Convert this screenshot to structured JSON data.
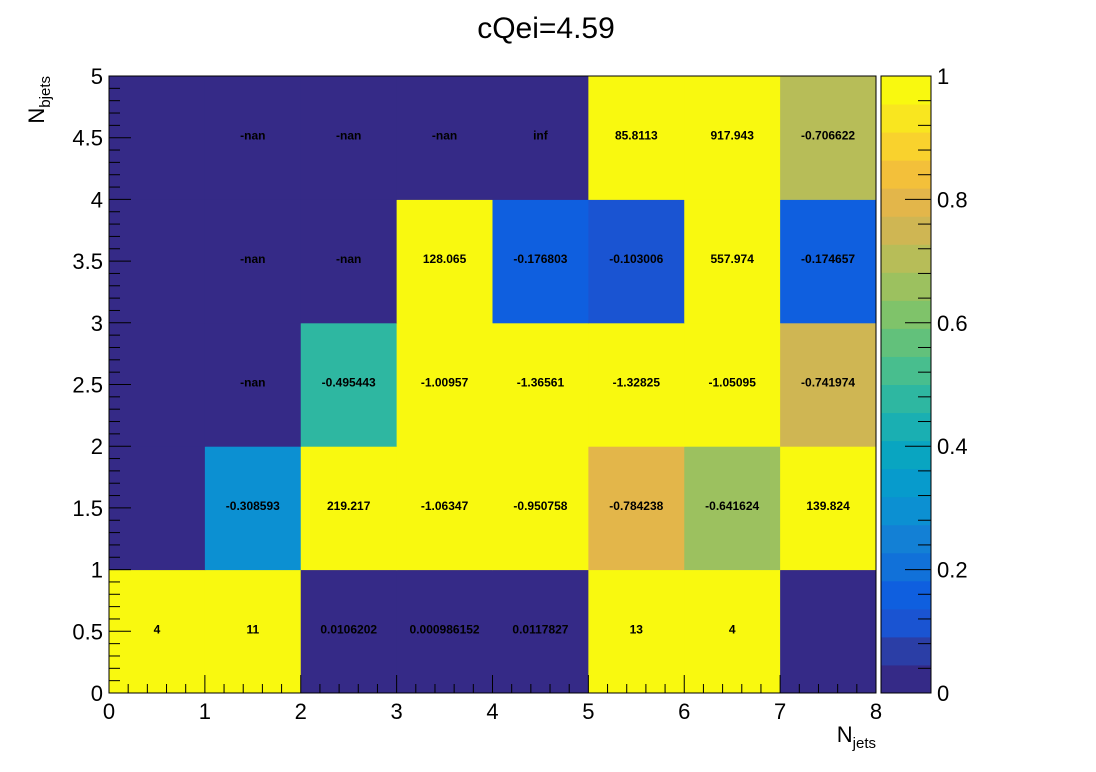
{
  "chart_data": {
    "type": "heatmap",
    "title": "cQei=4.59",
    "xlabel": {
      "base": "N",
      "sub": "jets"
    },
    "ylabel": {
      "base": "N",
      "sub": "bjets"
    },
    "x_edges": [
      0,
      1,
      2,
      3,
      4,
      5,
      6,
      7,
      8
    ],
    "y_edges": [
      0,
      1,
      2,
      3,
      4,
      5
    ],
    "xlim": [
      0,
      8
    ],
    "ylim": [
      0,
      5
    ],
    "zlim": [
      0,
      1
    ],
    "x_tick_labels": [
      "0",
      "1",
      "2",
      "3",
      "4",
      "5",
      "6",
      "7",
      "8"
    ],
    "y_tick_labels": [
      "0",
      "0.5",
      "1",
      "1.5",
      "2",
      "2.5",
      "3",
      "3.5",
      "4",
      "4.5",
      "5"
    ],
    "colorbar_tick_labels": [
      "0",
      "0.2",
      "0.4",
      "0.6",
      "0.8",
      "1"
    ],
    "cells": [
      [
        {
          "color": 1.0,
          "label": "4"
        },
        {
          "color": 1.0,
          "label": "11"
        },
        {
          "color": 0.0106202,
          "label": "0.0106202"
        },
        {
          "color": 0.000986152,
          "label": "0.000986152"
        },
        {
          "color": 0.0117827,
          "label": "0.0117827"
        },
        {
          "color": 1.0,
          "label": "13"
        },
        {
          "color": 1.0,
          "label": "4"
        },
        {
          "color": 0.0,
          "label": ""
        }
      ],
      [
        {
          "color": 0.03,
          "label": ""
        },
        {
          "color": 0.308593,
          "label": "-0.308593"
        },
        {
          "color": 1.0,
          "label": "219.217"
        },
        {
          "color": 1.0,
          "label": "-1.06347"
        },
        {
          "color": 1.0,
          "label": "-0.950758"
        },
        {
          "color": 0.784238,
          "label": "-0.784238"
        },
        {
          "color": 0.641624,
          "label": "-0.641624"
        },
        {
          "color": 1.0,
          "label": "139.824"
        }
      ],
      [
        {
          "color": 0.03,
          "label": ""
        },
        {
          "color": -1,
          "label": "-nan"
        },
        {
          "color": 0.495443,
          "label": "-0.495443"
        },
        {
          "color": 1.0,
          "label": "-1.00957"
        },
        {
          "color": 1.0,
          "label": "-1.36561"
        },
        {
          "color": 1.0,
          "label": "-1.32825"
        },
        {
          "color": 1.0,
          "label": "-1.05095"
        },
        {
          "color": 0.741974,
          "label": "-0.741974"
        }
      ],
      [
        {
          "color": 0.03,
          "label": ""
        },
        {
          "color": -1,
          "label": "-nan"
        },
        {
          "color": -1,
          "label": "-nan"
        },
        {
          "color": 1.0,
          "label": "128.065"
        },
        {
          "color": 0.176803,
          "label": "-0.176803"
        },
        {
          "color": 0.103006,
          "label": "-0.103006"
        },
        {
          "color": 1.0,
          "label": "557.974"
        },
        {
          "color": 0.174657,
          "label": "-0.174657"
        }
      ],
      [
        {
          "color": 0.03,
          "label": ""
        },
        {
          "color": -1,
          "label": "-nan"
        },
        {
          "color": -1,
          "label": "-nan"
        },
        {
          "color": -1,
          "label": "-nan"
        },
        {
          "color": -1,
          "label": "inf"
        },
        {
          "color": 1.0,
          "label": "85.8113"
        },
        {
          "color": 1.0,
          "label": "917.943"
        },
        {
          "color": 0.706622,
          "label": "-0.706622"
        }
      ]
    ],
    "undefined_color": "#352a87",
    "palette": [
      "#352a87",
      "#2b3ea6",
      "#1a54d2",
      "#0f5fdf",
      "#1171d9",
      "#1380d5",
      "#0c90d2",
      "#079bcc",
      "#09a5c1",
      "#1aafb2",
      "#2eb7a1",
      "#48be8e",
      "#62c17b",
      "#7fc36a",
      "#9cc15f",
      "#b7bd58",
      "#cfb653",
      "#e3b64a",
      "#f3c03a",
      "#f9d22d",
      "#f9e61f",
      "#f9f90f"
    ],
    "grid": false
  }
}
